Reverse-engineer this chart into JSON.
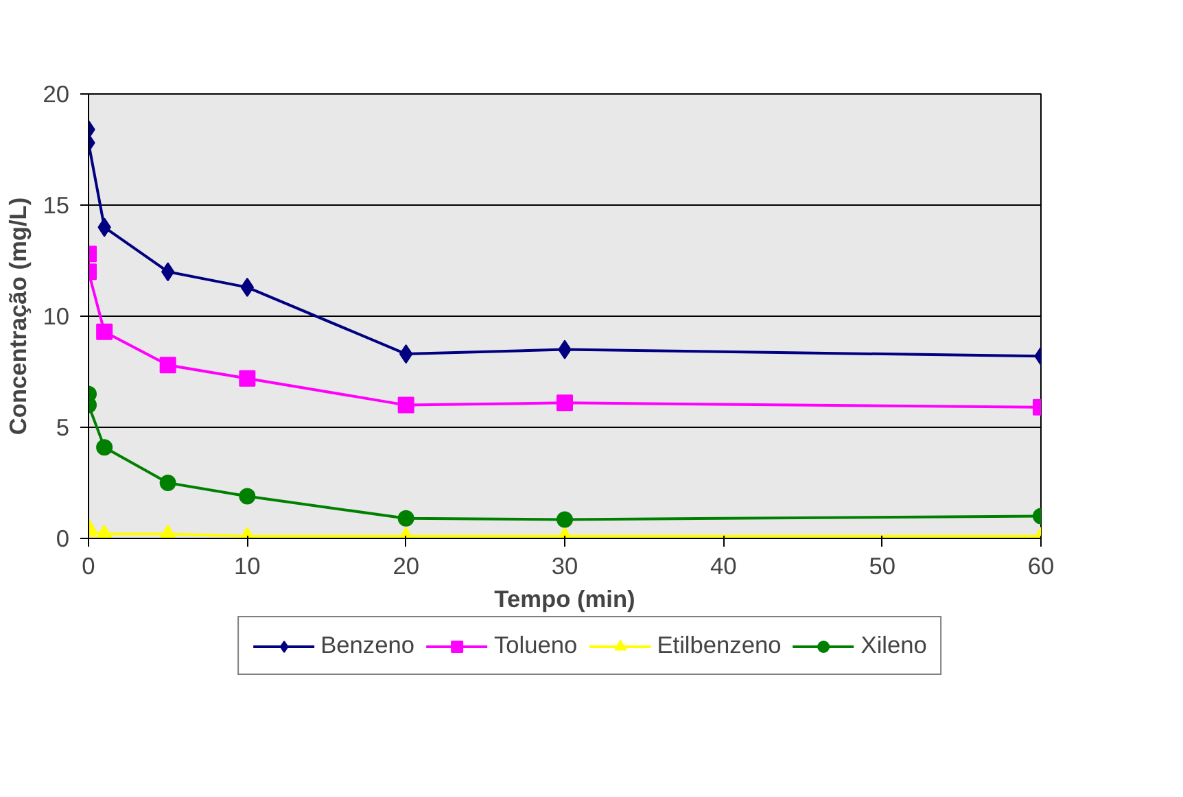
{
  "chart_data": {
    "type": "line",
    "xlabel": "Tempo (min)",
    "ylabel": "Concentração (mg/L)",
    "x": [
      0,
      0,
      1,
      5,
      10,
      20,
      30,
      60
    ],
    "xlim": [
      0,
      60
    ],
    "xticks": [
      0,
      10,
      20,
      30,
      40,
      50,
      60
    ],
    "ylim": [
      0,
      20
    ],
    "yticks": [
      0,
      5,
      10,
      15,
      20
    ],
    "grid": "y",
    "legend": "bottom",
    "series": [
      {
        "name": "Benzeno",
        "color": "#000080",
        "marker": "diamond",
        "values": [
          18.4,
          17.8,
          14.0,
          12.0,
          11.3,
          8.3,
          8.5,
          8.2
        ]
      },
      {
        "name": "Tolueno",
        "color": "#ff00ff",
        "marker": "square",
        "values": [
          12.8,
          12.0,
          9.3,
          7.8,
          7.2,
          6.0,
          6.1,
          5.9
        ]
      },
      {
        "name": "Etilbenzeno",
        "color": "#ffff00",
        "marker": "triangle",
        "values": [
          0.5,
          0.3,
          0.2,
          0.2,
          0.1,
          0.1,
          0.1,
          0.1
        ]
      },
      {
        "name": "Xileno",
        "color": "#008000",
        "marker": "circle",
        "values": [
          6.5,
          6.0,
          4.1,
          2.5,
          1.9,
          0.9,
          0.85,
          1.0
        ]
      }
    ]
  }
}
